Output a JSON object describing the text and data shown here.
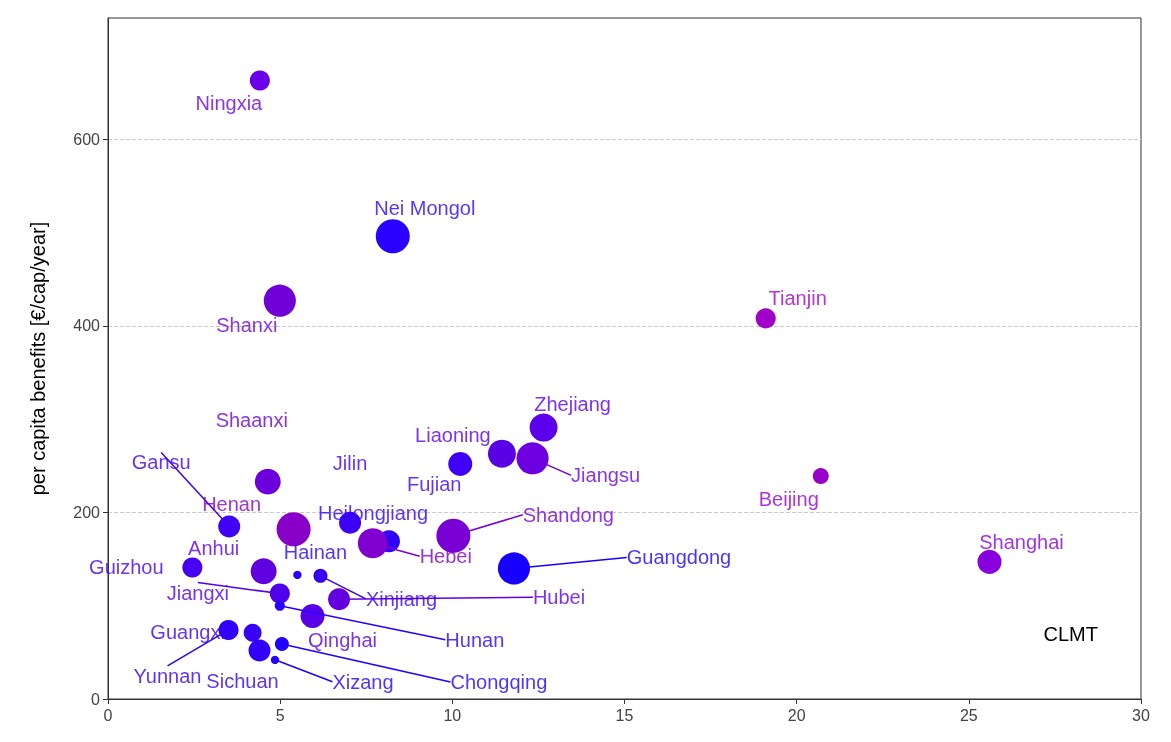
{
  "chart_data": {
    "type": "bubble",
    "ylabel": "per capita benefits [€/cap/year]",
    "xlim": [
      0,
      30
    ],
    "xticks": [
      0,
      5,
      10,
      15,
      20,
      25,
      30
    ],
    "ylim": [
      0,
      730
    ],
    "yticks": [
      0,
      200,
      400,
      600
    ],
    "grid": "y",
    "marker": "circle",
    "x": [
      4.41,
      8.27,
      4.99,
      19.1,
      20.7,
      25.6,
      12.65,
      12.33,
      11.44,
      10.23,
      4.64,
      3.52,
      5.39,
      7.03,
      8.16,
      7.69,
      10.03,
      11.79,
      4.52,
      2.45,
      5.5,
      6.17,
      4.99,
      6.71,
      4.99,
      5.94,
      3.5,
      4.2,
      4.4,
      5.05,
      4.85
    ],
    "values": [
      663,
      496,
      427,
      408,
      239,
      147,
      291,
      258,
      263,
      252,
      233,
      185,
      182,
      189,
      169,
      167,
      175,
      140,
      137,
      141,
      133,
      132,
      113,
      107,
      100,
      89,
      74,
      71,
      52,
      59,
      42
    ],
    "sizes": [
      0.35,
      1,
      0.89,
      0.35,
      0.22,
      0.5,
      0.68,
      0.89,
      0.68,
      0.5,
      0.58,
      0.42,
      1,
      0.42,
      0.42,
      0.78,
      1,
      0.89,
      0.58,
      0.35,
      0.06,
      0.17,
      0.35,
      0.42,
      0.09,
      0.5,
      0.35,
      0.28,
      0.42,
      0.17,
      0.06
    ],
    "colors": [
      "#6a00e8",
      "#2a00ff",
      "#7000d8",
      "#a000c8",
      "#9800cc",
      "#8800e0",
      "#5a00ea",
      "#6c00e0",
      "#5a00e5",
      "#3f00f5",
      "#6c00dd",
      "#4000f5",
      "#8800c8",
      "#3c00f5",
      "#3000f8",
      "#8000d0",
      "#7800d5",
      "#1800ff",
      "#6000e0",
      "#4800f0",
      "#2800ff",
      "#3800f5",
      "#5000eb",
      "#6400e0",
      "#2800ff",
      "#5800e8",
      "#3000f8",
      "#3800f5",
      "#3000f8",
      "#2000ff",
      "#2000ff"
    ],
    "annotations": [
      {
        "text": "Ningxia",
        "x": 4.41,
        "y": 663
      },
      {
        "text": "Nei Mongol",
        "x": 8.27,
        "y": 496
      },
      {
        "text": "Shanxi",
        "x": 4.99,
        "y": 427
      },
      {
        "text": "Tianjin",
        "x": 19.1,
        "y": 408
      },
      {
        "text": "Beijing",
        "x": 20.7,
        "y": 239
      },
      {
        "text": "Shanghai",
        "x": 25.6,
        "y": 147
      },
      {
        "text": "Zhejiang",
        "x": 12.65,
        "y": 291
      },
      {
        "text": "Jiangsu",
        "x": 12.33,
        "y": 258
      },
      {
        "text": "Liaoning",
        "x": 11.44,
        "y": 263
      },
      {
        "text": "Fujian",
        "x": 10.23,
        "y": 252
      },
      {
        "text": "Shaanxi",
        "x": 4.64,
        "y": 233
      },
      {
        "text": "Gansu",
        "x": 3.52,
        "y": 185
      },
      {
        "text": "Henan",
        "x": 5.39,
        "y": 182
      },
      {
        "text": "Jilin",
        "x": 7.03,
        "y": 189
      },
      {
        "text": "Heilongjiang",
        "x": 8.16,
        "y": 169
      },
      {
        "text": "Hebei",
        "x": 7.69,
        "y": 167
      },
      {
        "text": "Shandong",
        "x": 10.03,
        "y": 175
      },
      {
        "text": "Guangdong",
        "x": 11.79,
        "y": 140
      },
      {
        "text": "Anhui",
        "x": 4.52,
        "y": 137
      },
      {
        "text": "Guizhou",
        "x": 2.45,
        "y": 141
      },
      {
        "text": "Hainan",
        "x": 5.5,
        "y": 133
      },
      {
        "text": "Xinjiang",
        "x": 6.17,
        "y": 132
      },
      {
        "text": "Jiangxi",
        "x": 4.99,
        "y": 113
      },
      {
        "text": "Hubei",
        "x": 6.71,
        "y": 107
      },
      {
        "text": "Hunan",
        "x": 4.99,
        "y": 100
      },
      {
        "text": "Qinghai",
        "x": 5.94,
        "y": 89
      },
      {
        "text": "Yunnan",
        "x": 3.5,
        "y": 74
      },
      {
        "text": "Guangxi",
        "x": 4.2,
        "y": 71
      },
      {
        "text": "Sichuan",
        "x": 4.4,
        "y": 52
      },
      {
        "text": "Chongqing",
        "x": 5.05,
        "y": 59
      },
      {
        "text": "Xizang",
        "x": 4.85,
        "y": 42
      },
      "CLMT"
    ]
  }
}
